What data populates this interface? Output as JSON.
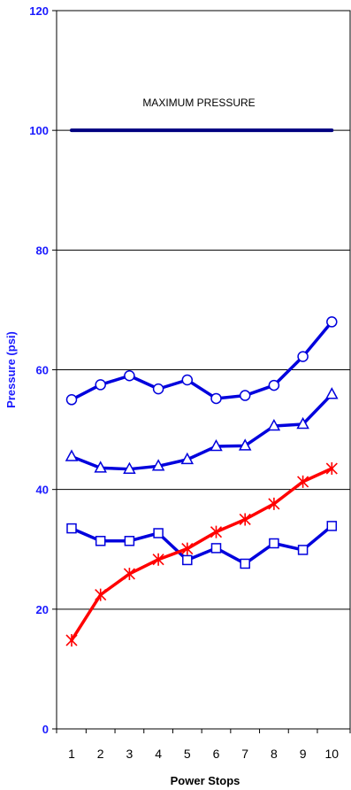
{
  "chart_data": {
    "type": "line",
    "xlabel": "Power Stops",
    "ylabel": "Pressure (psi)",
    "ylim": [
      0,
      120
    ],
    "y_ticks": [
      "0",
      "20",
      "40",
      "60",
      "80",
      "100",
      "120"
    ],
    "categories": [
      "1",
      "2",
      "3",
      "4",
      "5",
      "6",
      "7",
      "8",
      "9",
      "10"
    ],
    "grid": "horizontal",
    "annotation": {
      "text": "MAXIMUM PRESSURE"
    },
    "colors": {
      "axis_text": "#1a1aff",
      "blue_series": "#0000dd",
      "red_series": "#ff0000",
      "max_line": "#000080"
    },
    "series": [
      {
        "marker": "circle",
        "color": "#0000dd",
        "values": [
          55.0,
          57.5,
          59.0,
          56.8,
          58.3,
          55.2,
          55.7,
          57.4,
          62.2,
          68.0
        ]
      },
      {
        "marker": "triangle",
        "color": "#0000dd",
        "values": [
          45.5,
          43.6,
          43.4,
          43.9,
          45.0,
          47.2,
          47.3,
          50.6,
          50.9,
          55.9
        ]
      },
      {
        "marker": "square",
        "color": "#0000dd",
        "values": [
          33.5,
          31.4,
          31.4,
          32.7,
          28.2,
          30.2,
          27.6,
          31.0,
          29.9,
          33.9
        ]
      },
      {
        "marker": "asterisk",
        "color": "#ff0000",
        "values": [
          14.8,
          22.4,
          25.9,
          28.3,
          30.1,
          32.9,
          35.0,
          37.6,
          41.3,
          43.5
        ]
      },
      {
        "marker": "none",
        "color": "#000080",
        "values": [
          100,
          100,
          100,
          100,
          100,
          100,
          100,
          100,
          100,
          100
        ]
      }
    ]
  }
}
